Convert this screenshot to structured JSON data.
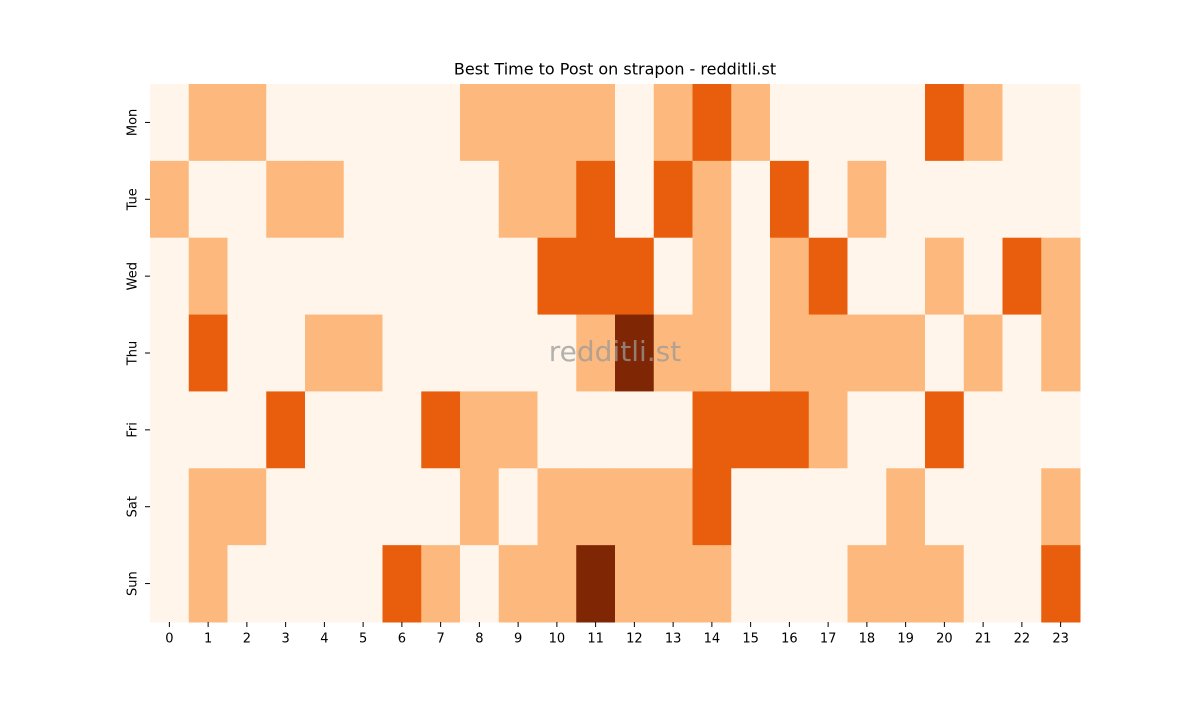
{
  "chart_data": {
    "type": "heatmap",
    "title": "Best Time to Post on strapon - redditli.st",
    "watermark": "redditli.st",
    "x_categories": [
      0,
      1,
      2,
      3,
      4,
      5,
      6,
      7,
      8,
      9,
      10,
      11,
      12,
      13,
      14,
      15,
      16,
      17,
      18,
      19,
      20,
      21,
      22,
      23
    ],
    "y_categories": [
      "Mon",
      "Tue",
      "Wed",
      "Thu",
      "Fri",
      "Sat",
      "Sun"
    ],
    "values": [
      [
        0,
        1,
        1,
        0,
        0,
        0,
        0,
        0,
        1,
        1,
        1,
        1,
        0,
        1,
        2,
        1,
        0,
        0,
        0,
        0,
        2,
        1,
        0,
        0
      ],
      [
        1,
        0,
        0,
        1,
        1,
        0,
        0,
        0,
        0,
        1,
        1,
        2,
        0,
        2,
        1,
        0,
        2,
        0,
        1,
        0,
        0,
        0,
        0,
        0
      ],
      [
        0,
        1,
        0,
        0,
        0,
        0,
        0,
        0,
        0,
        0,
        2,
        2,
        2,
        0,
        1,
        0,
        1,
        2,
        0,
        0,
        1,
        0,
        2,
        1
      ],
      [
        0,
        2,
        0,
        0,
        1,
        1,
        0,
        0,
        0,
        0,
        0,
        1,
        3,
        1,
        1,
        0,
        1,
        1,
        1,
        1,
        0,
        1,
        0,
        1
      ],
      [
        0,
        0,
        0,
        2,
        0,
        0,
        0,
        2,
        1,
        1,
        0,
        0,
        0,
        0,
        2,
        2,
        2,
        1,
        0,
        0,
        2,
        0,
        0,
        0
      ],
      [
        0,
        1,
        1,
        0,
        0,
        0,
        0,
        0,
        1,
        0,
        1,
        1,
        1,
        1,
        2,
        0,
        0,
        0,
        0,
        1,
        0,
        0,
        0,
        1
      ],
      [
        0,
        1,
        0,
        0,
        0,
        0,
        2,
        1,
        0,
        1,
        1,
        3,
        1,
        1,
        1,
        0,
        0,
        0,
        1,
        1,
        1,
        0,
        0,
        2
      ]
    ],
    "colors": [
      "#fff5eb",
      "#fdb97d",
      "#e95e0d",
      "#7f2704"
    ]
  }
}
